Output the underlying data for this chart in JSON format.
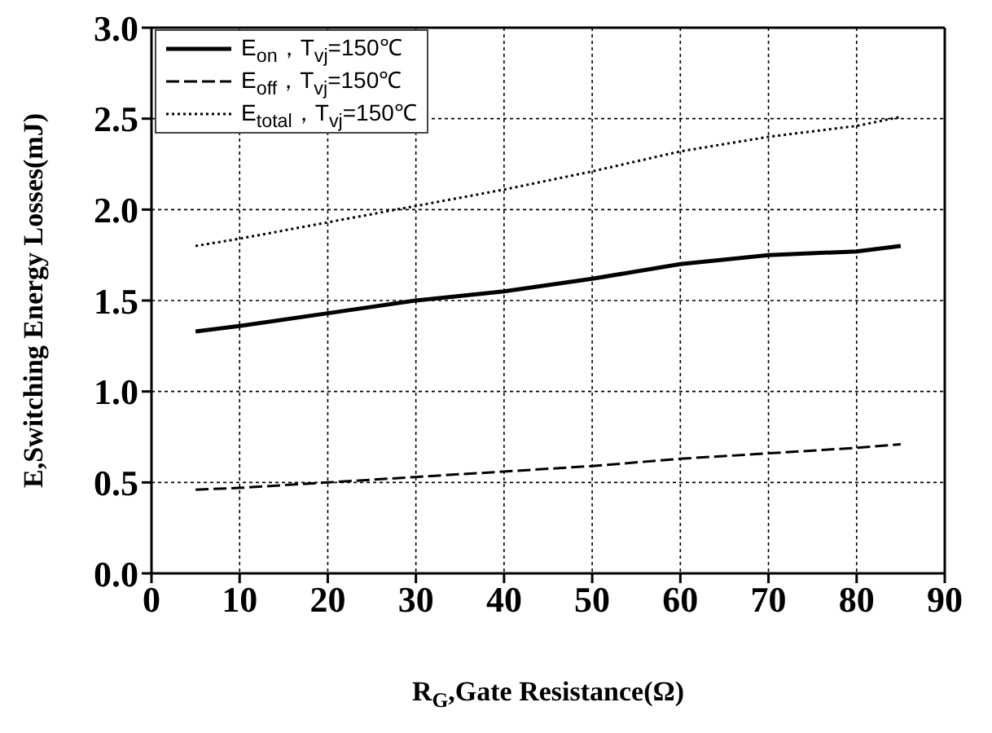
{
  "chart_data": {
    "type": "line",
    "xlabel": "R$_{G}$,Gate Resistance(Ω)",
    "ylabel": "E,Switching Energy Losses(mJ)",
    "x": [
      5,
      10,
      20,
      30,
      40,
      50,
      60,
      70,
      80,
      85
    ],
    "series": [
      {
        "name": "E$_{on}$，T$_{vj}$=150℃",
        "color": "#000000",
        "line_style": "solid",
        "values": [
          1.33,
          1.36,
          1.43,
          1.5,
          1.55,
          1.62,
          1.7,
          1.75,
          1.77,
          1.8
        ]
      },
      {
        "name": "E$_{off}$，T$_{vj}$=150℃",
        "color": "#000000",
        "line_style": "dashed",
        "values": [
          0.46,
          0.47,
          0.5,
          0.53,
          0.56,
          0.59,
          0.63,
          0.66,
          0.69,
          0.71
        ]
      },
      {
        "name": "E$_{total}$，T$_{vj}$=150℃",
        "color": "#000000",
        "line_style": "dotted",
        "values": [
          1.8,
          1.84,
          1.93,
          2.02,
          2.11,
          2.21,
          2.32,
          2.4,
          2.46,
          2.51
        ]
      }
    ],
    "xlim": [
      0,
      90
    ],
    "xticks": [
      0,
      10,
      20,
      30,
      40,
      50,
      60,
      70,
      80,
      90
    ],
    "ylim": [
      0,
      3
    ],
    "yticks": [
      {
        "value": 0,
        "label": "0.0"
      },
      {
        "value": 0.5,
        "label": "0.5"
      },
      {
        "value": 1,
        "label": "1.0"
      },
      {
        "value": 1.5,
        "label": "1.5"
      },
      {
        "value": 2,
        "label": "2.0"
      },
      {
        "value": 2.5,
        "label": "2.5"
      },
      {
        "value": 3,
        "label": "3.0"
      }
    ],
    "grid": true,
    "legend": "top left",
    "marker": "none"
  }
}
